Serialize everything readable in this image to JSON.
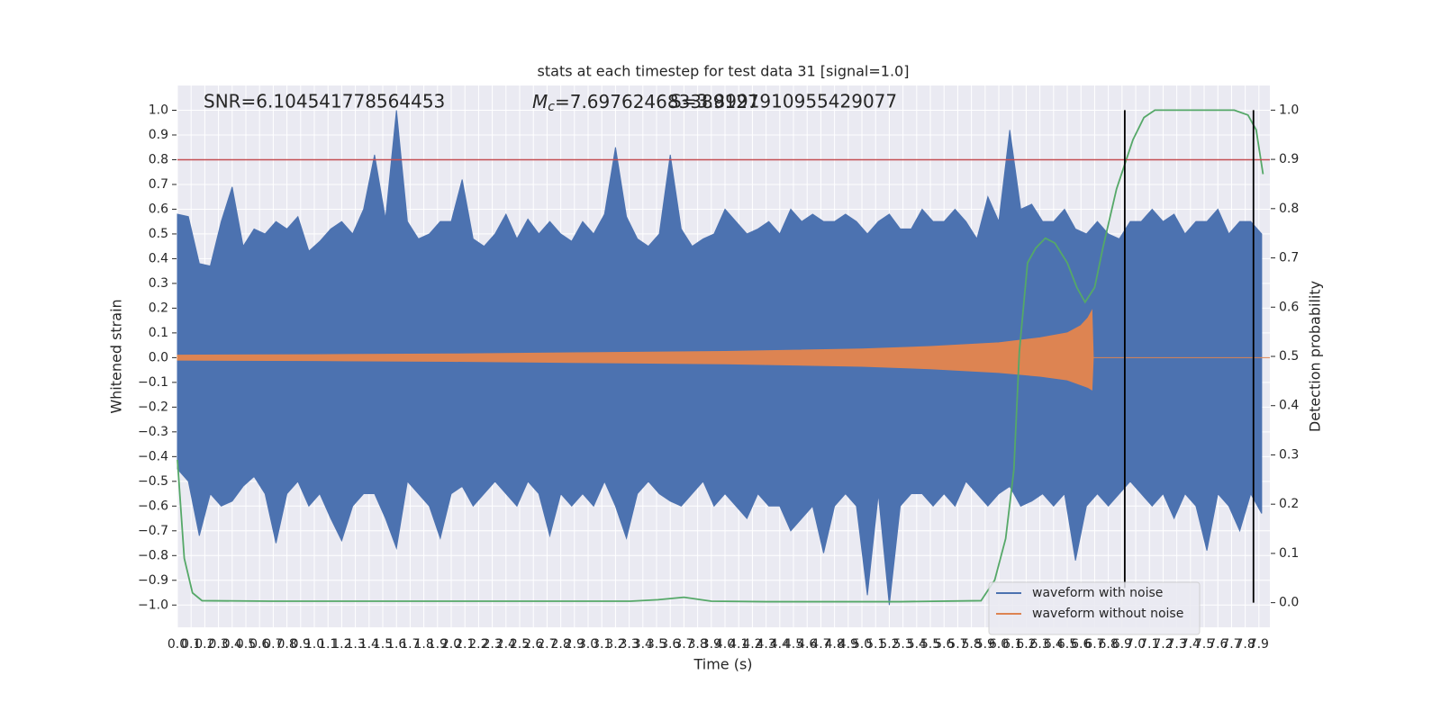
{
  "chart_data": {
    "type": "line",
    "title": "stats at each timestep for test data 31 [signal=1.0]",
    "xlabel": "Time (s)",
    "ylabel": "Whitened strain",
    "y2label": "Detection probability",
    "annotations": [
      {
        "text": "SNR=6.104541778564453"
      },
      {
        "symbol": "M",
        "subscript": "c",
        "text": "=7.697624683389127"
      },
      {
        "text": "S=3.8991910955429077"
      }
    ],
    "xlim": [
      0,
      7.98
    ],
    "ylim": [
      -1.09,
      1.1
    ],
    "y2lim": [
      -0.05,
      1.05
    ],
    "grid": true,
    "legend": "lower right",
    "xticks": [
      {
        "value": 0,
        "label": "0.0"
      },
      0.1,
      0.2,
      0.3,
      0.4,
      0.5,
      0.6,
      0.7,
      0.8,
      0.9,
      {
        "value": 1,
        "label": "1.0"
      },
      1.1,
      1.2,
      1.3,
      1.4,
      1.5,
      1.6,
      1.7,
      1.8,
      1.9,
      {
        "value": 2,
        "label": "2.0"
      },
      2.1,
      2.2,
      2.3,
      2.4,
      2.5,
      2.6,
      2.7,
      2.8,
      2.9,
      {
        "value": 3,
        "label": "3.0"
      },
      3.1,
      3.2,
      3.3,
      3.4,
      3.5,
      3.6,
      3.7,
      3.8,
      3.9,
      {
        "value": 4,
        "label": "4.0"
      },
      4.1,
      4.2,
      4.3,
      4.4,
      4.5,
      4.6,
      4.7,
      4.8,
      4.9,
      {
        "value": 5,
        "label": "5.0"
      },
      5.1,
      5.2,
      5.3,
      5.4,
      5.5,
      5.6,
      5.7,
      5.8,
      5.9,
      {
        "value": 6,
        "label": "6.0"
      },
      6.1,
      6.2,
      6.3,
      6.4,
      6.5,
      6.6,
      6.7,
      6.8,
      6.9,
      {
        "value": 7,
        "label": "7.0"
      },
      7.1,
      7.2,
      7.3,
      7.4,
      7.5,
      7.6,
      7.7,
      7.8,
      7.9
    ],
    "yticks": [
      {
        "value": -1,
        "label": "−1.0"
      },
      {
        "value": -0.9,
        "label": "−0.9"
      },
      {
        "value": -0.8,
        "label": "−0.8"
      },
      {
        "value": -0.7,
        "label": "−0.7"
      },
      {
        "value": -0.6,
        "label": "−0.6"
      },
      {
        "value": -0.5,
        "label": "−0.5"
      },
      {
        "value": -0.4,
        "label": "−0.4"
      },
      {
        "value": -0.3,
        "label": "−0.3"
      },
      {
        "value": -0.2,
        "label": "−0.2"
      },
      {
        "value": -0.1,
        "label": "−0.1"
      },
      {
        "value": 0,
        "label": "0.0"
      },
      0.1,
      0.2,
      0.3,
      0.4,
      0.5,
      0.6,
      0.7,
      0.8,
      0.9,
      {
        "value": 1,
        "label": "1.0"
      }
    ],
    "y2ticks": [
      {
        "value": 0,
        "label": "0.0"
      },
      0.1,
      0.2,
      0.3,
      0.4,
      0.5,
      0.6,
      0.7,
      0.8,
      0.9,
      {
        "value": 1,
        "label": "1.0"
      }
    ],
    "hlines": [
      {
        "y": 0.8,
        "color": "#c44e52"
      }
    ],
    "vlines": [
      {
        "x": 6.92,
        "ymin": 0.03,
        "ymax": 1,
        "color": "#000000"
      },
      {
        "x": 7.86,
        "ymin": 0,
        "ymax": 1,
        "color": "#000000"
      }
    ],
    "series": [
      {
        "name": "waveform with noise",
        "color": "#4c72b0",
        "x": [
          0,
          0.08,
          0.16,
          0.24,
          0.32,
          0.4,
          0.48,
          0.56,
          0.64,
          0.72,
          0.8,
          0.88,
          0.96,
          1.04,
          1.12,
          1.2,
          1.28,
          1.36,
          1.44,
          1.52,
          1.6,
          1.68,
          1.76,
          1.84,
          1.92,
          2,
          2.08,
          2.16,
          2.24,
          2.32,
          2.4,
          2.48,
          2.56,
          2.64,
          2.72,
          2.8,
          2.88,
          2.96,
          3.04,
          3.12,
          3.2,
          3.28,
          3.36,
          3.44,
          3.52,
          3.6,
          3.68,
          3.76,
          3.84,
          3.92,
          4,
          4.08,
          4.16,
          4.24,
          4.32,
          4.4,
          4.48,
          4.56,
          4.64,
          4.72,
          4.8,
          4.88,
          4.96,
          5.04,
          5.12,
          5.2,
          5.28,
          5.36,
          5.44,
          5.52,
          5.6,
          5.68,
          5.76,
          5.84,
          5.92,
          6,
          6.08,
          6.16,
          6.24,
          6.32,
          6.4,
          6.48,
          6.56,
          6.64,
          6.72,
          6.8,
          6.88,
          6.96,
          7.04,
          7.12,
          7.2,
          7.28,
          7.36,
          7.44,
          7.52,
          7.6,
          7.68,
          7.76,
          7.84,
          7.92
        ],
        "upper": [
          0.58,
          0.57,
          0.38,
          0.37,
          0.55,
          0.69,
          0.45,
          0.52,
          0.5,
          0.55,
          0.52,
          0.57,
          0.43,
          0.47,
          0.52,
          0.55,
          0.5,
          0.6,
          0.82,
          0.56,
          1.0,
          0.55,
          0.48,
          0.5,
          0.55,
          0.55,
          0.72,
          0.48,
          0.45,
          0.5,
          0.58,
          0.48,
          0.56,
          0.5,
          0.55,
          0.5,
          0.47,
          0.55,
          0.5,
          0.58,
          0.85,
          0.57,
          0.48,
          0.45,
          0.5,
          0.82,
          0.52,
          0.45,
          0.48,
          0.5,
          0.6,
          0.55,
          0.5,
          0.52,
          0.55,
          0.5,
          0.6,
          0.55,
          0.58,
          0.55,
          0.55,
          0.58,
          0.55,
          0.5,
          0.55,
          0.58,
          0.52,
          0.52,
          0.6,
          0.55,
          0.55,
          0.6,
          0.55,
          0.48,
          0.65,
          0.55,
          0.92,
          0.6,
          0.62,
          0.55,
          0.55,
          0.6,
          0.52,
          0.5,
          0.55,
          0.5,
          0.48,
          0.55,
          0.55,
          0.6,
          0.55,
          0.58,
          0.5,
          0.55,
          0.55,
          0.6,
          0.5,
          0.55,
          0.55,
          0.5
        ],
        "lower": [
          -0.45,
          -0.5,
          -0.72,
          -0.55,
          -0.6,
          -0.58,
          -0.52,
          -0.48,
          -0.55,
          -0.75,
          -0.55,
          -0.5,
          -0.6,
          -0.55,
          -0.65,
          -0.74,
          -0.6,
          -0.55,
          -0.55,
          -0.65,
          -0.77,
          -0.5,
          -0.55,
          -0.6,
          -0.73,
          -0.55,
          -0.52,
          -0.6,
          -0.55,
          -0.5,
          -0.55,
          -0.6,
          -0.5,
          -0.55,
          -0.72,
          -0.55,
          -0.6,
          -0.55,
          -0.6,
          -0.5,
          -0.6,
          -0.73,
          -0.55,
          -0.5,
          -0.55,
          -0.58,
          -0.6,
          -0.55,
          -0.5,
          -0.6,
          -0.55,
          -0.6,
          -0.65,
          -0.55,
          -0.6,
          -0.6,
          -0.7,
          -0.65,
          -0.6,
          -0.79,
          -0.6,
          -0.55,
          -0.6,
          -0.96,
          -0.55,
          -1.0,
          -0.6,
          -0.55,
          -0.55,
          -0.6,
          -0.55,
          -0.6,
          -0.5,
          -0.55,
          -0.6,
          -0.55,
          -0.52,
          -0.6,
          -0.58,
          -0.55,
          -0.6,
          -0.55,
          -0.82,
          -0.6,
          -0.55,
          -0.6,
          -0.55,
          -0.5,
          -0.55,
          -0.6,
          -0.55,
          -0.65,
          -0.55,
          -0.6,
          -0.78,
          -0.55,
          -0.6,
          -0.7,
          -0.55,
          -0.63
        ]
      },
      {
        "name": "waveform without noise",
        "color": "#dd8452",
        "x": [
          0,
          1,
          2,
          3,
          4,
          5,
          5.5,
          6,
          6.3,
          6.5,
          6.6,
          6.65,
          6.68,
          6.69,
          7.98
        ],
        "upper": [
          0.01,
          0.012,
          0.015,
          0.02,
          0.025,
          0.035,
          0.045,
          0.06,
          0.08,
          0.1,
          0.13,
          0.16,
          0.19,
          0,
          0
        ],
        "lower": [
          -0.01,
          -0.012,
          -0.015,
          -0.02,
          -0.025,
          -0.035,
          -0.045,
          -0.06,
          -0.075,
          -0.09,
          -0.11,
          -0.12,
          -0.13,
          0,
          0
        ]
      },
      {
        "color": "#55a868",
        "axis": "y2",
        "x": [
          0,
          0.05,
          0.11,
          0.18,
          0.68,
          1.99,
          3.31,
          3.51,
          3.7,
          3.9,
          4.3,
          5.28,
          5.87,
          5.97,
          6.05,
          6.11,
          6.15,
          6.21,
          6.27,
          6.34,
          6.41,
          6.5,
          6.57,
          6.63,
          6.7,
          6.76,
          6.86,
          6.98,
          7.06,
          7.14,
          7.72,
          7.82,
          7.88,
          7.93
        ],
        "values": [
          0.29,
          0.09,
          0.02,
          0.004,
          0.003,
          0.003,
          0.003,
          0.006,
          0.011,
          0.003,
          0.002,
          0.002,
          0.004,
          0.046,
          0.13,
          0.27,
          0.51,
          0.69,
          0.72,
          0.74,
          0.73,
          0.69,
          0.64,
          0.61,
          0.64,
          0.72,
          0.84,
          0.94,
          0.985,
          1.0,
          1.0,
          0.99,
          0.96,
          0.87
        ]
      }
    ]
  }
}
